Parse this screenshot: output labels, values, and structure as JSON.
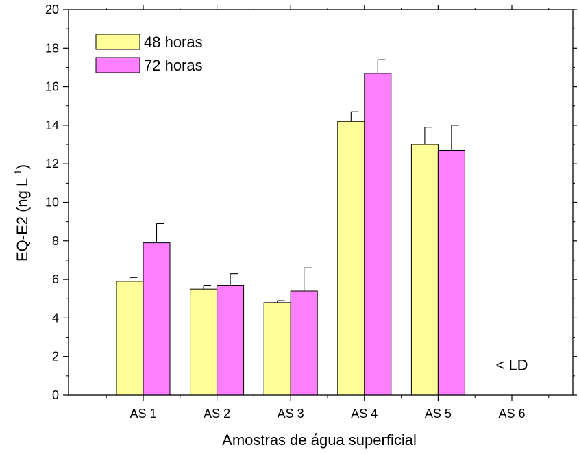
{
  "chart_data": {
    "type": "bar",
    "title": "",
    "xlabel": "Amostras de água superficial",
    "ylabel": "EQ-E2 (ng L",
    "ylabel_superscript": "-1",
    "ylabel_suffix": ")",
    "ylim": [
      0,
      20
    ],
    "yticks": [
      "0",
      "2",
      "4",
      "6",
      "8",
      "10",
      "12",
      "14",
      "16",
      "18",
      "20"
    ],
    "categories": [
      "AS 1",
      "AS 2",
      "AS 3",
      "AS 4",
      "AS 5",
      "AS 6"
    ],
    "series": [
      {
        "name": "48 horas",
        "color": "#ffff99",
        "values": [
          5.9,
          5.5,
          4.8,
          14.2,
          13.0,
          null
        ],
        "errors": [
          0.2,
          0.2,
          0.1,
          0.5,
          0.9,
          null
        ]
      },
      {
        "name": "72 horas",
        "color": "#ff80ff",
        "values": [
          7.9,
          5.7,
          5.4,
          16.7,
          12.7,
          null
        ],
        "errors": [
          1.0,
          0.6,
          1.2,
          0.7,
          1.3,
          null
        ]
      }
    ],
    "annotations": [
      {
        "text": "< LD",
        "category": "AS 6"
      }
    ],
    "legend_position": "top-left",
    "grid": false
  }
}
